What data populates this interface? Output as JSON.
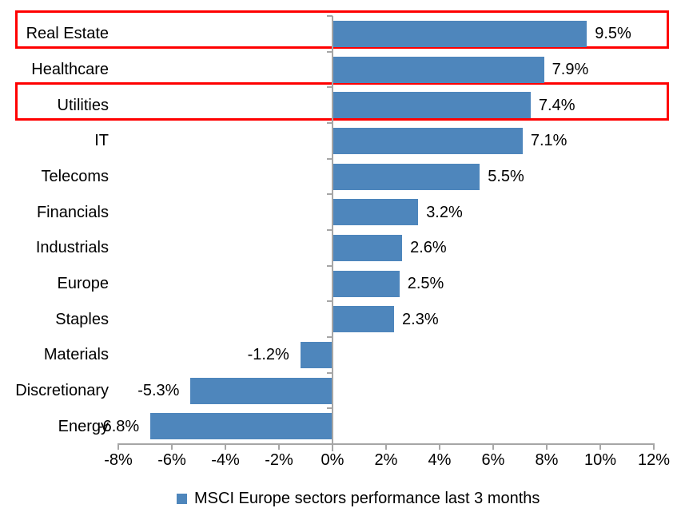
{
  "chart_data": {
    "type": "bar",
    "orientation": "horizontal",
    "title": "",
    "categories": [
      "Real Estate",
      "Healthcare",
      "Utilities",
      "IT",
      "Telecoms",
      "Financials",
      "Industrials",
      "Europe",
      "Staples",
      "Materials",
      "Discretionary",
      "Energy"
    ],
    "values": [
      9.5,
      7.9,
      7.4,
      7.1,
      5.5,
      3.2,
      2.6,
      2.5,
      2.3,
      -1.2,
      -5.3,
      -6.8
    ],
    "data_labels": [
      "9.5%",
      "7.9%",
      "7.4%",
      "7.1%",
      "5.5%",
      "3.2%",
      "2.6%",
      "2.5%",
      "2.3%",
      "-1.2%",
      "-5.3%",
      "-6.8%"
    ],
    "x_tick_values": [
      -8,
      -6,
      -4,
      -2,
      0,
      2,
      4,
      6,
      8,
      10,
      12
    ],
    "x_tick_labels": [
      "-8%",
      "-6%",
      "-4%",
      "-2%",
      "0%",
      "2%",
      "4%",
      "6%",
      "8%",
      "10%",
      "12%"
    ],
    "xlim": [
      -8,
      12
    ],
    "grid": false,
    "legend": "MSCI Europe sectors performance last 3 months",
    "legend_position": "bottom-center",
    "highlighted_categories": [
      "Real Estate",
      "Utilities"
    ],
    "colors": {
      "bar": "#4E86BC",
      "axis": "#A6A6A6",
      "highlight_box": "#FF0000",
      "text": "#000000",
      "background": "#FFFFFF"
    }
  }
}
